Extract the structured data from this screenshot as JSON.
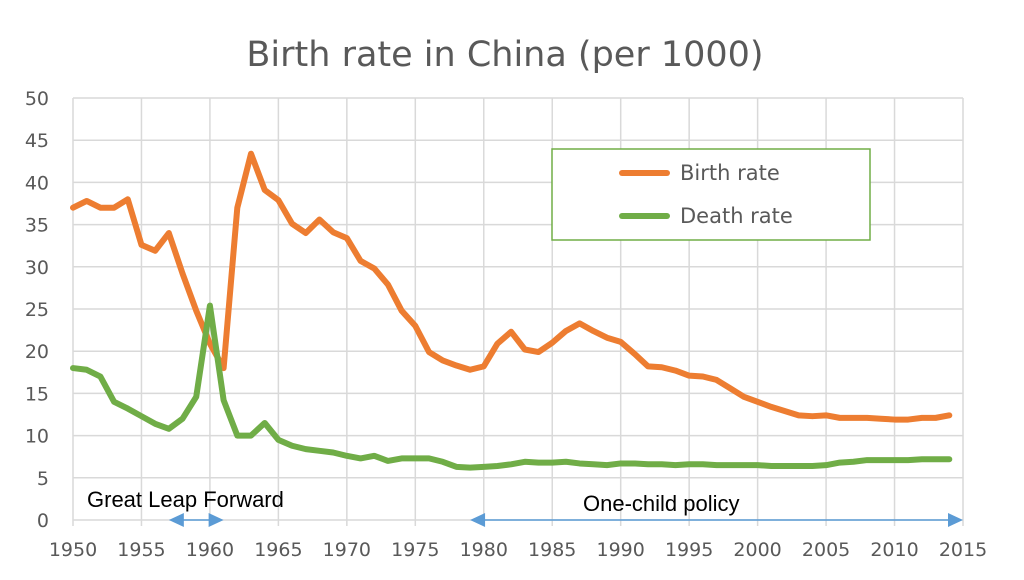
{
  "chart_data": {
    "type": "line",
    "title": "Birth rate in China (per 1000)",
    "xlabel": "",
    "ylabel": "",
    "xlim": [
      1950,
      2015
    ],
    "ylim": [
      0,
      50
    ],
    "grid": true,
    "x_ticks": [
      "1950",
      "1955",
      "1960",
      "1965",
      "1970",
      "1975",
      "1980",
      "1985",
      "1990",
      "1995",
      "2000",
      "2005",
      "2010",
      "2015"
    ],
    "y_ticks": [
      "0",
      "5",
      "10",
      "15",
      "20",
      "25",
      "30",
      "35",
      "40",
      "45",
      "50"
    ],
    "legend_position": "top-right",
    "x_start": 1950,
    "series": [
      {
        "name": "Birth rate",
        "color": "#ED7D31",
        "values": [
          37.0,
          37.8,
          37.0,
          37.0,
          38.0,
          32.6,
          31.9,
          34.0,
          29.2,
          24.8,
          20.9,
          18.0,
          37.0,
          43.4,
          39.1,
          37.9,
          35.1,
          34.0,
          35.6,
          34.1,
          33.4,
          30.7,
          29.8,
          27.9,
          24.8,
          23.0,
          19.9,
          18.9,
          18.3,
          17.8,
          18.2,
          20.9,
          22.3,
          20.2,
          19.9,
          21.0,
          22.4,
          23.3,
          22.4,
          21.6,
          21.1,
          19.7,
          18.2,
          18.1,
          17.7,
          17.1,
          17.0,
          16.6,
          15.6,
          14.6,
          14.0,
          13.4,
          12.9,
          12.4,
          12.3,
          12.4,
          12.1,
          12.1,
          12.1,
          12.0,
          11.9,
          11.9,
          12.1,
          12.1,
          12.4
        ]
      },
      {
        "name": "Death rate",
        "color": "#70AD47",
        "values": [
          18.0,
          17.8,
          17.0,
          14.0,
          13.2,
          12.3,
          11.4,
          10.8,
          12.0,
          14.6,
          25.4,
          14.2,
          10.0,
          10.0,
          11.5,
          9.5,
          8.8,
          8.4,
          8.2,
          8.0,
          7.6,
          7.3,
          7.6,
          7.0,
          7.3,
          7.3,
          7.3,
          6.9,
          6.3,
          6.2,
          6.3,
          6.4,
          6.6,
          6.9,
          6.8,
          6.8,
          6.9,
          6.7,
          6.6,
          6.5,
          6.7,
          6.7,
          6.6,
          6.6,
          6.5,
          6.6,
          6.6,
          6.5,
          6.5,
          6.5,
          6.5,
          6.4,
          6.4,
          6.4,
          6.4,
          6.5,
          6.8,
          6.9,
          7.1,
          7.1,
          7.1,
          7.1,
          7.2,
          7.2,
          7.2
        ]
      }
    ],
    "annotations": [
      {
        "text": "Great Leap Forward",
        "from": 1957,
        "to": 1961
      },
      {
        "text": "One-child policy",
        "from": 1979,
        "to": 2015
      }
    ],
    "annotation_arrow_color": "#5B9BD5",
    "legend_border_color": "#70AD47"
  }
}
